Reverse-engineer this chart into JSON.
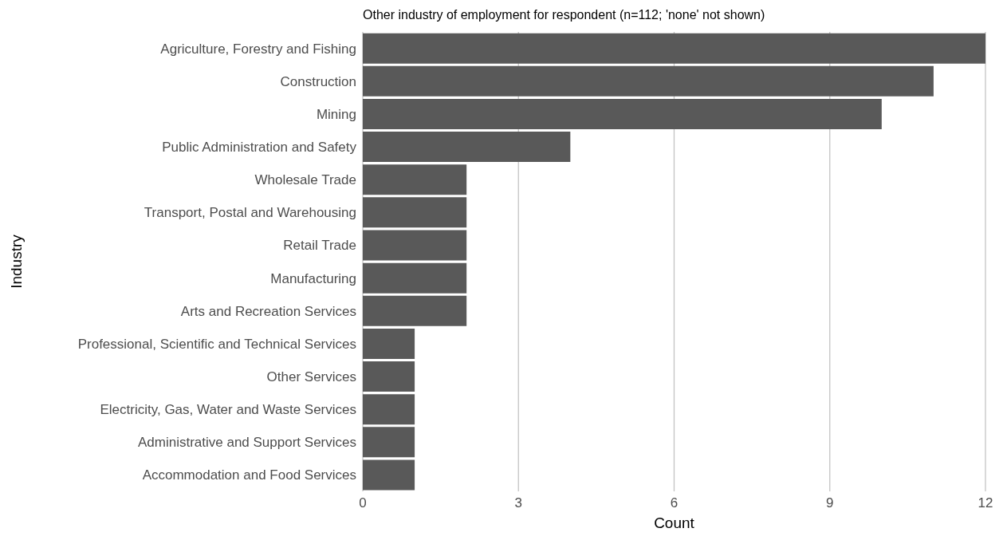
{
  "chart_data": {
    "type": "bar",
    "orientation": "horizontal",
    "title": "Other industry of employment for respondent (n=112; 'none' not shown)",
    "xlabel": "Count",
    "ylabel": "Industry",
    "categories": [
      "Agriculture, Forestry and Fishing",
      "Construction",
      "Mining",
      "Public Administration and Safety",
      "Wholesale Trade",
      "Transport, Postal and Warehousing",
      "Retail Trade",
      "Manufacturing",
      "Arts and Recreation Services",
      "Professional, Scientific and Technical Services",
      "Other Services",
      "Electricity, Gas, Water and Waste Services",
      "Administrative and Support Services",
      "Accommodation and Food Services"
    ],
    "values": [
      12,
      11,
      10,
      4,
      2,
      2,
      2,
      2,
      2,
      1,
      1,
      1,
      1,
      1
    ],
    "color": "#595959",
    "xlim": [
      0,
      12
    ],
    "xticks": [
      0,
      3,
      6,
      9,
      12
    ],
    "grid": "x"
  }
}
